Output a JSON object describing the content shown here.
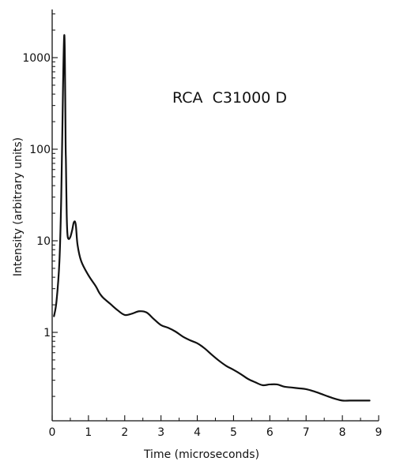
{
  "chart_data": {
    "type": "line",
    "title": "",
    "annotation": "RCA  C31000 D",
    "xlabel": "Time (microseconds)",
    "ylabel": "Intensity (arbitrary units)",
    "xlim": [
      0,
      9
    ],
    "ylim": [
      0.1,
      2600
    ],
    "yscale": "log",
    "grid": false,
    "legend": "none",
    "x_ticks": [
      0,
      1,
      2,
      3,
      4,
      5,
      6,
      7,
      8,
      9
    ],
    "y_ticks": [
      1,
      10,
      100,
      1000
    ],
    "series": [
      {
        "color": "#111111",
        "x": [
          0.05,
          0.12,
          0.2,
          0.25,
          0.3,
          0.33,
          0.35,
          0.37,
          0.38,
          0.4,
          0.42,
          0.45,
          0.5,
          0.55,
          0.6,
          0.65,
          0.7,
          0.8,
          1.0,
          1.2,
          1.3,
          1.4,
          1.6,
          1.8,
          2.0,
          2.2,
          2.4,
          2.6,
          2.8,
          3.0,
          3.2,
          3.4,
          3.6,
          3.8,
          4.0,
          4.2,
          4.4,
          4.6,
          4.8,
          5.0,
          5.2,
          5.4,
          5.6,
          5.8,
          6.0,
          6.2,
          6.4,
          6.6,
          6.8,
          7.0,
          7.2,
          7.4,
          7.6,
          7.8,
          8.0,
          8.2,
          8.4,
          8.6,
          8.75
        ],
        "y": [
          1.5,
          2.2,
          6,
          30,
          500,
          1700,
          1000,
          120,
          70,
          20,
          12,
          10.5,
          11,
          13,
          16,
          15,
          9,
          6,
          4.2,
          3.2,
          2.7,
          2.4,
          2.05,
          1.75,
          1.55,
          1.6,
          1.7,
          1.65,
          1.4,
          1.2,
          1.12,
          1.02,
          0.9,
          0.82,
          0.76,
          0.67,
          0.57,
          0.49,
          0.43,
          0.39,
          0.35,
          0.31,
          0.285,
          0.265,
          0.27,
          0.27,
          0.255,
          0.25,
          0.245,
          0.24,
          0.228,
          0.214,
          0.2,
          0.188,
          0.18,
          0.18,
          0.18,
          0.18,
          0.18
        ]
      }
    ]
  }
}
